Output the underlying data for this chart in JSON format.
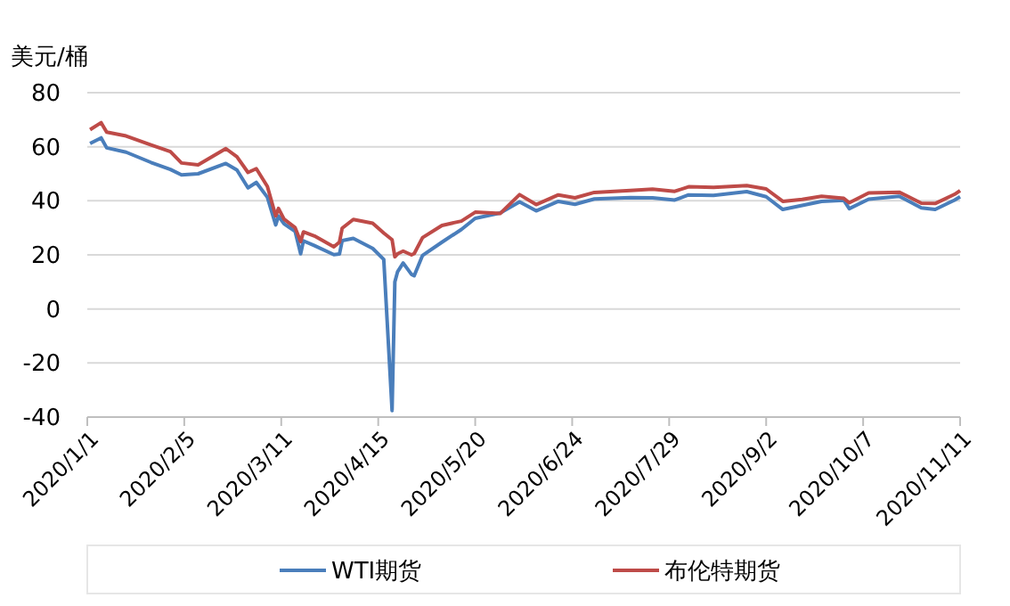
{
  "chart_data": {
    "type": "line",
    "ylabel": "美元/桶",
    "x": [
      "2020-01-02",
      "2020-01-06",
      "2020-01-08",
      "2020-01-15",
      "2020-01-24",
      "2020-01-31",
      "2020-02-04",
      "2020-02-10",
      "2020-02-20",
      "2020-02-24",
      "2020-02-28",
      "2020-03-02",
      "2020-03-06",
      "2020-03-09",
      "2020-03-10",
      "2020-03-12",
      "2020-03-16",
      "2020-03-18",
      "2020-03-19",
      "2020-03-23",
      "2020-03-30",
      "2020-04-01",
      "2020-04-02",
      "2020-04-06",
      "2020-04-13",
      "2020-04-17",
      "2020-04-20",
      "2020-04-21",
      "2020-04-22",
      "2020-04-24",
      "2020-04-27",
      "2020-04-28",
      "2020-05-01",
      "2020-05-08",
      "2020-05-15",
      "2020-05-20",
      "2020-05-29",
      "2020-06-05",
      "2020-06-11",
      "2020-06-19",
      "2020-06-25",
      "2020-07-02",
      "2020-07-15",
      "2020-07-23",
      "2020-07-31",
      "2020-08-05",
      "2020-08-14",
      "2020-08-26",
      "2020-09-02",
      "2020-09-08",
      "2020-09-15",
      "2020-09-22",
      "2020-09-30",
      "2020-10-02",
      "2020-10-09",
      "2020-10-20",
      "2020-10-28",
      "2020-11-02",
      "2020-11-09",
      "2020-11-11"
    ],
    "series": [
      {
        "name": "WTI期货",
        "color": "#4a7ebb",
        "values": [
          61.2,
          63.3,
          59.6,
          58.0,
          54.2,
          51.6,
          49.6,
          50.0,
          53.8,
          51.4,
          44.8,
          46.8,
          41.3,
          31.1,
          34.4,
          31.5,
          28.7,
          20.4,
          25.2,
          23.4,
          20.1,
          20.3,
          25.3,
          26.1,
          22.4,
          18.3,
          -37.6,
          10.0,
          13.8,
          17.0,
          12.8,
          12.3,
          19.8,
          24.7,
          29.4,
          33.5,
          35.5,
          39.6,
          36.3,
          39.8,
          38.7,
          40.7,
          41.2,
          41.1,
          40.3,
          42.2,
          42.0,
          43.4,
          41.5,
          36.8,
          38.3,
          39.8,
          40.2,
          37.1,
          40.6,
          41.7,
          37.4,
          36.8,
          40.3,
          41.5
        ]
      },
      {
        "name": "布伦特期货",
        "color": "#be4b48",
        "values": [
          66.3,
          68.9,
          65.4,
          64.0,
          60.7,
          58.2,
          54.0,
          53.3,
          59.3,
          56.3,
          50.5,
          51.9,
          45.3,
          34.4,
          37.2,
          33.2,
          30.1,
          24.9,
          28.5,
          27.0,
          23.0,
          24.7,
          29.9,
          33.1,
          31.7,
          28.1,
          25.6,
          19.3,
          20.4,
          21.4,
          20.0,
          20.5,
          26.4,
          30.9,
          32.5,
          35.8,
          35.3,
          42.3,
          38.6,
          42.2,
          41.1,
          43.1,
          43.8,
          44.3,
          43.5,
          45.2,
          45.0,
          45.6,
          44.4,
          39.8,
          40.5,
          41.7,
          40.9,
          39.3,
          42.9,
          43.2,
          39.1,
          39.0,
          42.4,
          43.8
        ]
      }
    ],
    "xlim": [
      "2020-01-01",
      "2020-11-11"
    ],
    "xticks": [
      {
        "value": "2020-01-01",
        "label": "2020/1/1"
      },
      {
        "value": "2020-02-05",
        "label": "2020/2/5"
      },
      {
        "value": "2020-03-11",
        "label": "2020/3/11"
      },
      {
        "value": "2020-04-15",
        "label": "2020/4/15"
      },
      {
        "value": "2020-05-20",
        "label": "2020/5/20"
      },
      {
        "value": "2020-06-24",
        "label": "2020/6/24"
      },
      {
        "value": "2020-07-29",
        "label": "2020/7/29"
      },
      {
        "value": "2020-09-02",
        "label": "2020/9/2"
      },
      {
        "value": "2020-10-07",
        "label": "2020/10/7"
      },
      {
        "value": "2020-11-11",
        "label": "2020/11/11"
      }
    ],
    "ylim": [
      -40,
      80
    ],
    "yticks": [
      -40,
      -20,
      0,
      20,
      40,
      60,
      80
    ],
    "grid": "y",
    "legend": "bottom",
    "marker": "none",
    "line_style": "solid"
  }
}
